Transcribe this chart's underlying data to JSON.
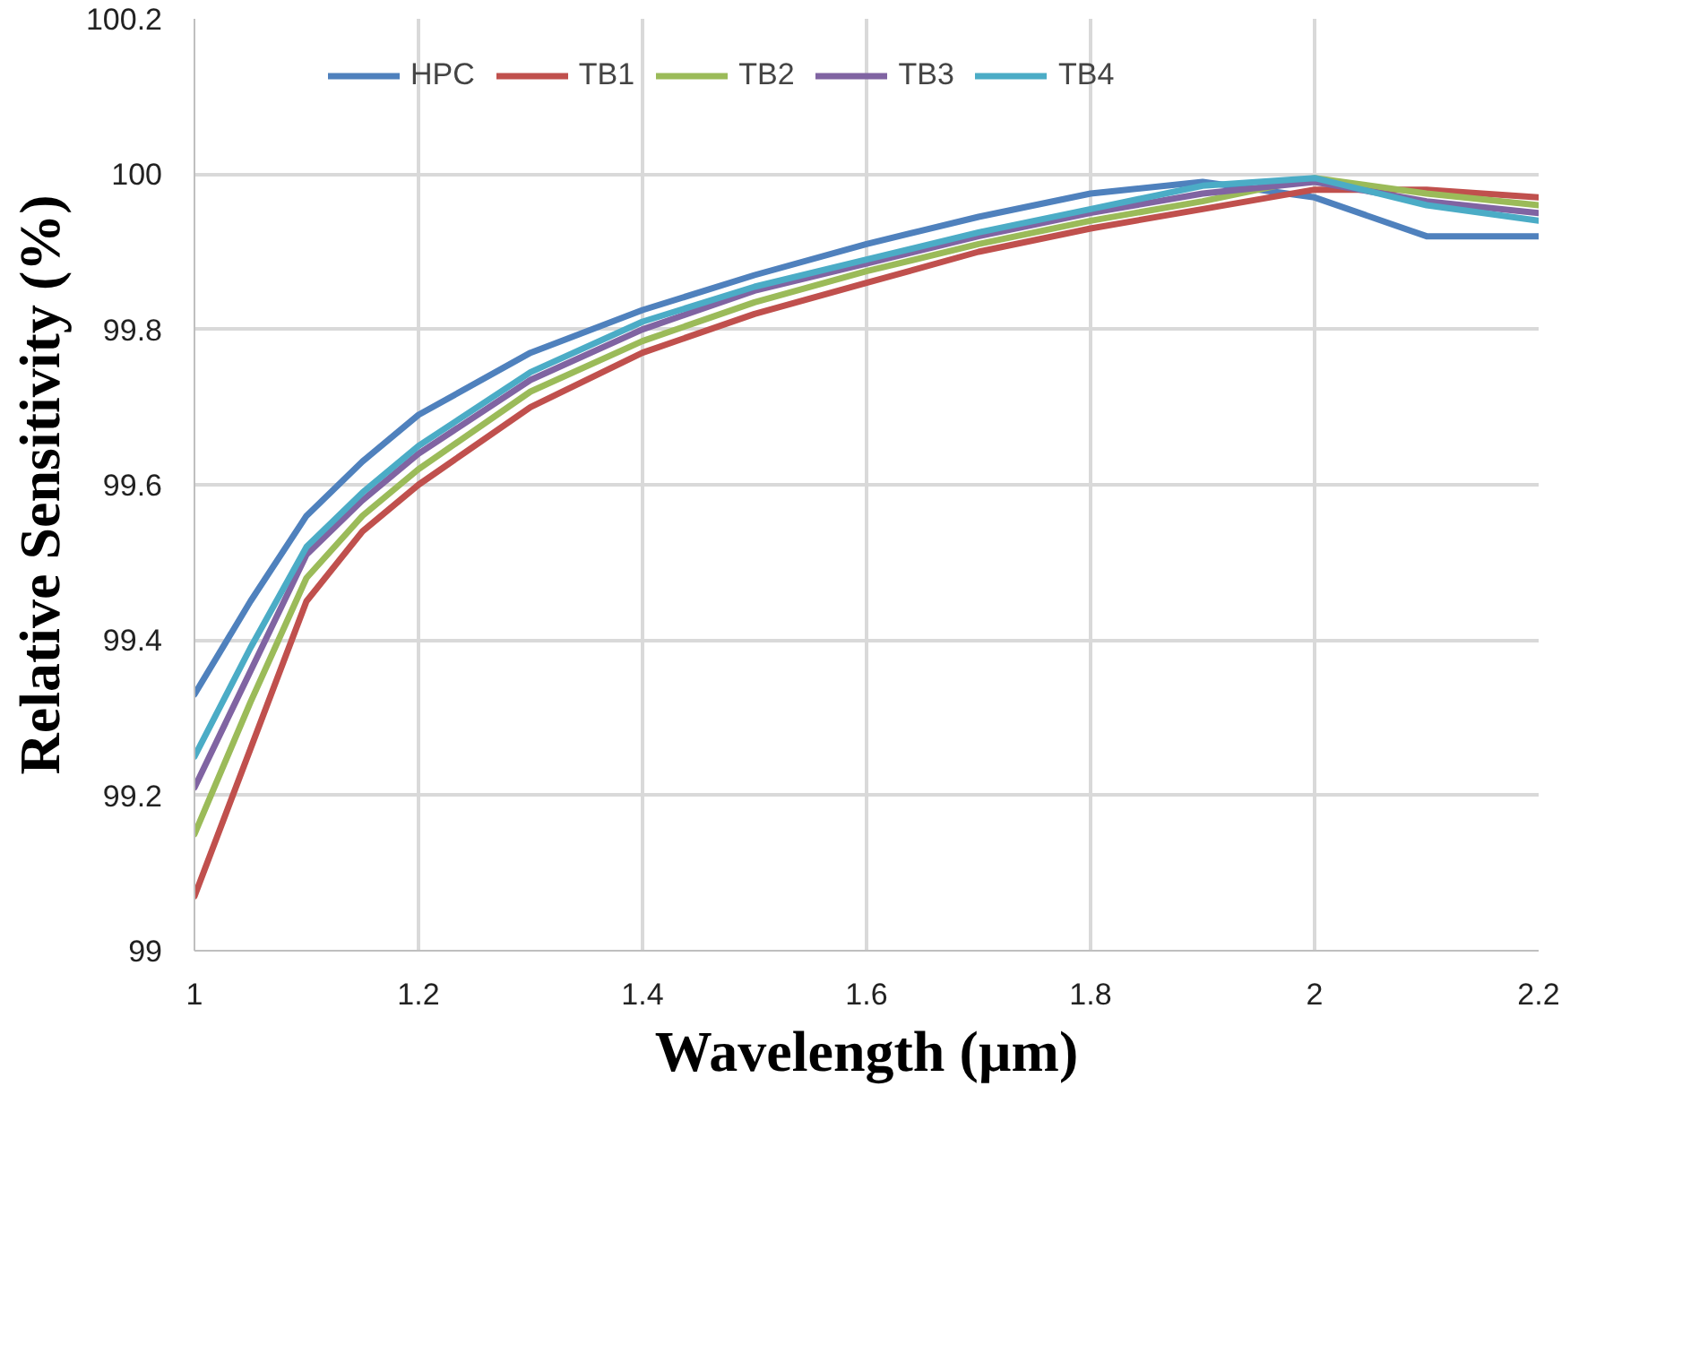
{
  "chart_data": {
    "type": "line",
    "xlabel": "Wavelength (µm)",
    "ylabel": "Relative Sensitivity (%)",
    "x": [
      1,
      1.05,
      1.1,
      1.15,
      1.2,
      1.3,
      1.4,
      1.5,
      1.6,
      1.7,
      1.8,
      1.9,
      2.0,
      2.1,
      2.2
    ],
    "series": [
      {
        "name": "HPC",
        "color": "#4f81bd",
        "values": [
          99.33,
          99.45,
          99.56,
          99.63,
          99.69,
          99.77,
          99.825,
          99.87,
          99.91,
          99.945,
          99.975,
          99.99,
          99.97,
          99.92,
          99.92
        ]
      },
      {
        "name": "TB1",
        "color": "#c0504d",
        "values": [
          99.07,
          99.26,
          99.45,
          99.54,
          99.6,
          99.7,
          99.77,
          99.82,
          99.86,
          99.9,
          99.93,
          99.955,
          99.98,
          99.98,
          99.97
        ]
      },
      {
        "name": "TB2",
        "color": "#9bbb59",
        "values": [
          99.15,
          99.32,
          99.48,
          99.56,
          99.62,
          99.72,
          99.785,
          99.835,
          99.875,
          99.91,
          99.94,
          99.965,
          99.995,
          99.975,
          99.96
        ]
      },
      {
        "name": "TB3",
        "color": "#8064a2",
        "values": [
          99.21,
          99.36,
          99.51,
          99.58,
          99.64,
          99.735,
          99.8,
          99.85,
          99.885,
          99.92,
          99.95,
          99.975,
          99.99,
          99.965,
          99.95
        ]
      },
      {
        "name": "TB4",
        "color": "#4bacc6",
        "values": [
          99.25,
          99.39,
          99.52,
          99.59,
          99.65,
          99.745,
          99.81,
          99.855,
          99.89,
          99.925,
          99.955,
          99.985,
          99.995,
          99.96,
          99.94
        ]
      }
    ],
    "xlim": [
      1,
      2.2
    ],
    "xticks": [
      1,
      1.2,
      1.4,
      1.6,
      1.8,
      2,
      2.2
    ],
    "ylim": [
      99,
      100.2
    ],
    "yticks": [
      99,
      99.2,
      99.4,
      99.6,
      99.8,
      100,
      100.2
    ],
    "grid": true,
    "legend": "top",
    "line_style": "solid",
    "marker": "none"
  }
}
